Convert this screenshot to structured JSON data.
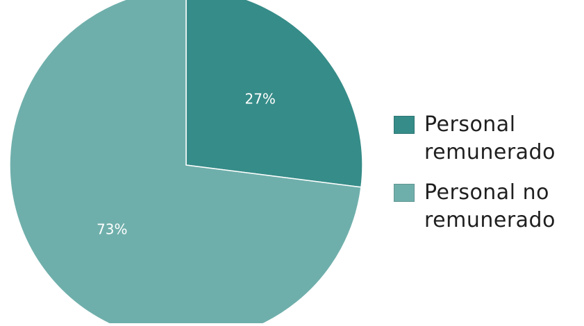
{
  "chart_data": {
    "type": "pie",
    "title": "",
    "slices": [
      {
        "name": "Personal remunerado",
        "value": 27,
        "label": "27%",
        "color": "#368c88"
      },
      {
        "name": "Personal no remunerado",
        "value": 73,
        "label": "73%",
        "color": "#6fafab"
      }
    ],
    "legend_position": "right",
    "legend": [
      {
        "line1": "Personal",
        "line2": "remunerado",
        "color": "#368c88"
      },
      {
        "line1": "Personal no",
        "line2": "remunerado",
        "color": "#6fafab"
      }
    ]
  }
}
